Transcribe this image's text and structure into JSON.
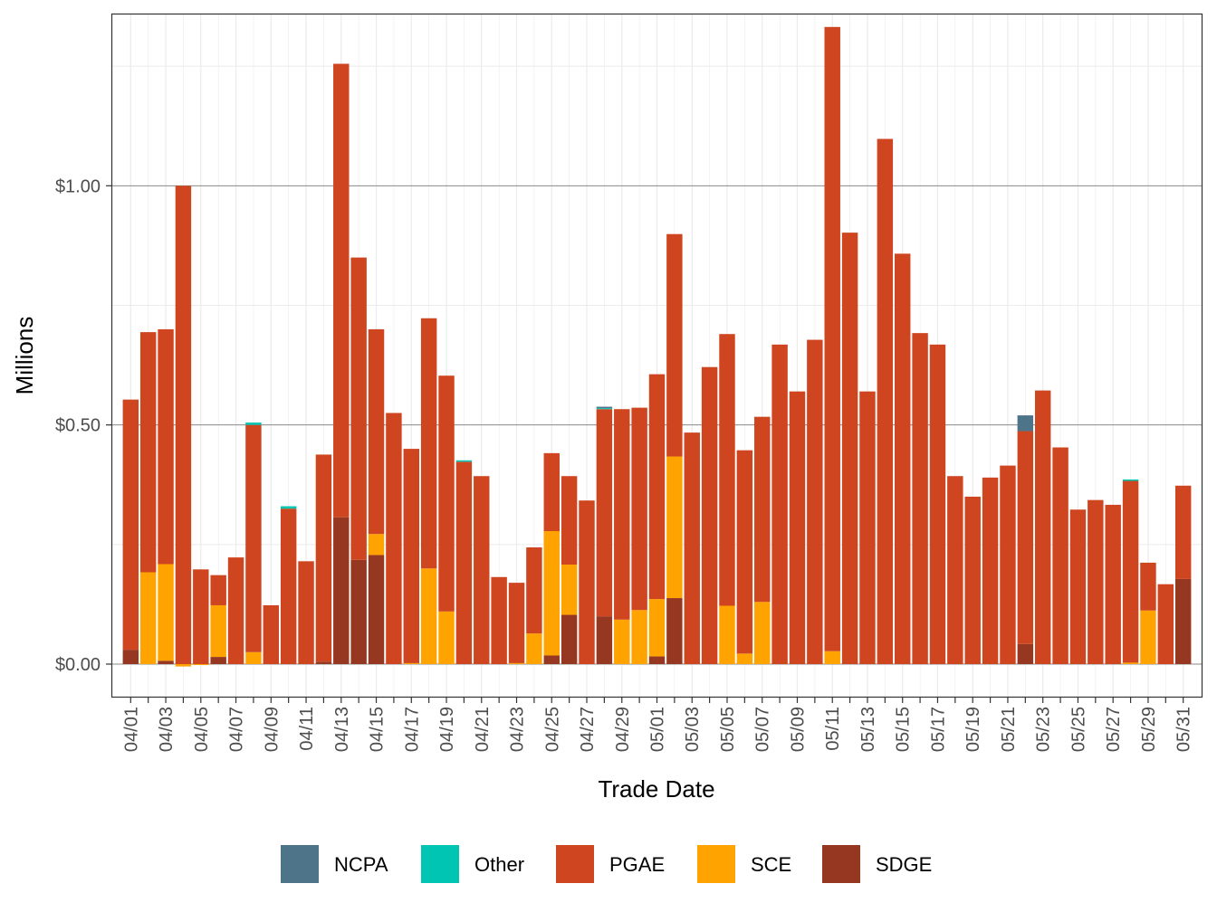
{
  "colors": {
    "NCPA": "#4e7489",
    "Other": "#00c5b2",
    "PGAE": "#cf4520",
    "SCE": "#ffa300",
    "SDGE": "#963821"
  },
  "chart_data": {
    "type": "bar",
    "stacked": true,
    "xlabel": "Trade Date",
    "ylabel": "Millions",
    "ylim": [
      -0.07,
      1.36
    ],
    "y_ticks": [
      0,
      0.5,
      1.0
    ],
    "y_tick_labels": [
      "$0.00",
      "$0.50",
      "$1.00"
    ],
    "grid": true,
    "legend_position": "bottom",
    "legend": [
      "NCPA",
      "Other",
      "PGAE",
      "SCE",
      "SDGE"
    ],
    "x_tick_labels": [
      "04/01",
      "04/03",
      "04/05",
      "04/07",
      "04/09",
      "04/11",
      "04/13",
      "04/15",
      "04/17",
      "04/19",
      "04/21",
      "04/23",
      "04/25",
      "04/27",
      "04/29",
      "05/01",
      "05/03",
      "05/05",
      "05/07",
      "05/09",
      "05/11",
      "05/13",
      "05/15",
      "05/17",
      "05/19",
      "05/21",
      "05/23",
      "05/25",
      "05/27",
      "05/29",
      "05/31"
    ],
    "categories": [
      "04/01",
      "04/02",
      "04/03",
      "04/04",
      "04/05",
      "04/06",
      "04/07",
      "04/08",
      "04/09",
      "04/10",
      "04/11",
      "04/12",
      "04/13",
      "04/14",
      "04/15",
      "04/16",
      "04/17",
      "04/18",
      "04/19",
      "04/20",
      "04/21",
      "04/22",
      "04/23",
      "04/24",
      "04/25",
      "04/26",
      "04/27",
      "04/28",
      "04/29",
      "04/30",
      "05/01",
      "05/02",
      "05/03",
      "05/04",
      "05/05",
      "05/06",
      "05/07",
      "05/08",
      "05/09",
      "05/10",
      "05/11",
      "05/12",
      "05/13",
      "05/14",
      "05/15",
      "05/16",
      "05/17",
      "05/18",
      "05/19",
      "05/20",
      "05/21",
      "05/22",
      "05/23",
      "05/24",
      "05/25",
      "05/26",
      "05/27",
      "05/28",
      "05/29",
      "05/30",
      "05/31"
    ],
    "series": [
      {
        "name": "SDGE",
        "values": [
          0.03,
          0,
          0.007,
          0,
          0,
          0.015,
          0,
          0,
          0,
          0,
          0,
          0.005,
          0.307,
          0.218,
          0.228,
          0,
          0,
          0,
          0,
          0,
          0,
          0,
          0,
          0,
          0.018,
          0.103,
          0,
          0.1,
          0,
          0,
          0.016,
          0.138,
          0,
          0,
          0,
          0,
          0,
          0,
          0,
          0,
          0,
          0,
          0,
          0,
          0,
          0,
          0,
          0,
          0,
          0,
          0,
          0.042,
          0,
          0,
          0,
          0,
          0,
          0,
          0,
          0,
          0.178
        ]
      },
      {
        "name": "SCE",
        "values": [
          0,
          0.192,
          0.202,
          -0.005,
          -0.002,
          0.108,
          0,
          0.025,
          0,
          0,
          0,
          0,
          0,
          0,
          0.044,
          0,
          0.002,
          0.2,
          0.11,
          0,
          0,
          0,
          0.002,
          0.064,
          0.26,
          0.105,
          0,
          0,
          0.093,
          0.113,
          0.12,
          0.296,
          0,
          0,
          0.122,
          0.022,
          0.13,
          0,
          0,
          0,
          0.027,
          0,
          0,
          0,
          0,
          0,
          0,
          0,
          0,
          0,
          0,
          0,
          0,
          0,
          0,
          0,
          0,
          0.003,
          0.112,
          0,
          0
        ]
      },
      {
        "name": "PGAE",
        "values": [
          0.523,
          0.502,
          0.491,
          1.0,
          0.198,
          0.063,
          0.223,
          0.475,
          0.123,
          0.325,
          0.215,
          0.433,
          0.948,
          0.632,
          0.428,
          0.525,
          0.448,
          0.523,
          0.493,
          0.423,
          0.393,
          0.182,
          0.168,
          0.18,
          0.163,
          0.185,
          0.342,
          0.433,
          0.44,
          0.423,
          0.47,
          0.465,
          0.484,
          0.621,
          0.568,
          0.425,
          0.387,
          0.668,
          0.57,
          0.678,
          1.305,
          0.902,
          0.57,
          1.098,
          0.858,
          0.692,
          0.668,
          0.393,
          0.35,
          0.39,
          0.415,
          0.445,
          0.572,
          0.453,
          0.323,
          0.343,
          0.333,
          0.38,
          0.1,
          0.167,
          0.195
        ]
      },
      {
        "name": "Other",
        "values": [
          0,
          0,
          0,
          0,
          0,
          0,
          0,
          0.005,
          0,
          0.005,
          0,
          0,
          0,
          0,
          0,
          0,
          0,
          0,
          0,
          0.003,
          0,
          0,
          0,
          0,
          0,
          0,
          0,
          0.002,
          0,
          0,
          0,
          0,
          0,
          0,
          0,
          0,
          0,
          0,
          0,
          0,
          0,
          0,
          0,
          0,
          0,
          0,
          0,
          0,
          0,
          0,
          0,
          0,
          0,
          0,
          0,
          0,
          0,
          0.003,
          0,
          0,
          0
        ]
      },
      {
        "name": "NCPA",
        "values": [
          0,
          0,
          0,
          0,
          0,
          0,
          0,
          0,
          0,
          0,
          0,
          0,
          0,
          0,
          0,
          0,
          0,
          0,
          0,
          0,
          0,
          0,
          0,
          0,
          0,
          0,
          0,
          0.003,
          0,
          0,
          0,
          0,
          0,
          0,
          0,
          0,
          0,
          0,
          0,
          0,
          0,
          0,
          0,
          0,
          0,
          0,
          0,
          0,
          0,
          0,
          0,
          0.033,
          0,
          0,
          0,
          0,
          0,
          0,
          0,
          0,
          0
        ]
      }
    ]
  }
}
